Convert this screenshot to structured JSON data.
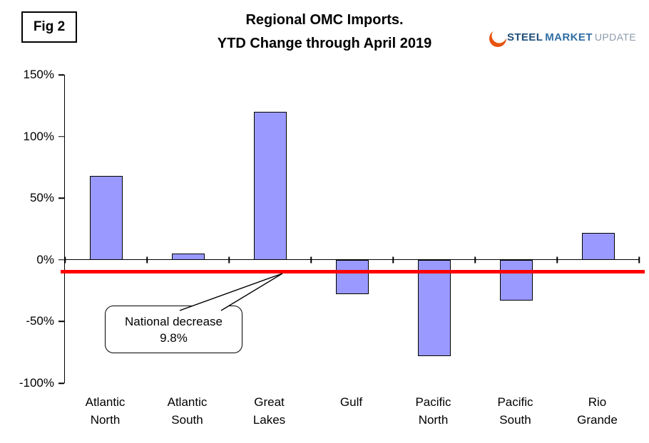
{
  "figure": {
    "label": "Fig 2"
  },
  "header": {
    "title_line1": "Regional OMC Imports.",
    "title_line2": "YTD Change through April 2019"
  },
  "logo": {
    "word1": "STEEL",
    "word2": "MARKET",
    "word3": "UPDATE",
    "swoosh_color": "#e8530e"
  },
  "chart_data": {
    "type": "bar",
    "title": "Regional OMC Imports. YTD Change through April 2019",
    "categories": [
      "Atlantic North",
      "Atlantic South",
      "Great Lakes",
      "Gulf",
      "Pacific North",
      "Pacific South",
      "Rio Grande"
    ],
    "values": [
      68,
      5,
      120,
      -28,
      -78,
      -33,
      22
    ],
    "unit": "%",
    "ylim": [
      -100,
      150
    ],
    "yticks": [
      150,
      100,
      50,
      0,
      -50,
      -100
    ],
    "ytick_labels": [
      "150%",
      "100%",
      "50%",
      "0%",
      "-50%",
      "-100%"
    ],
    "xlabel": "",
    "ylabel": "",
    "grid": false,
    "legend": false,
    "bar_fill": "#9999ff",
    "bar_border": "#000000",
    "reference_line": {
      "value": -9.8,
      "color": "#ff0000",
      "meaning": "National decrease 9.8%"
    },
    "annotation": {
      "line1": "National decrease",
      "line2": "9.8%",
      "target_value": -9.8
    }
  }
}
